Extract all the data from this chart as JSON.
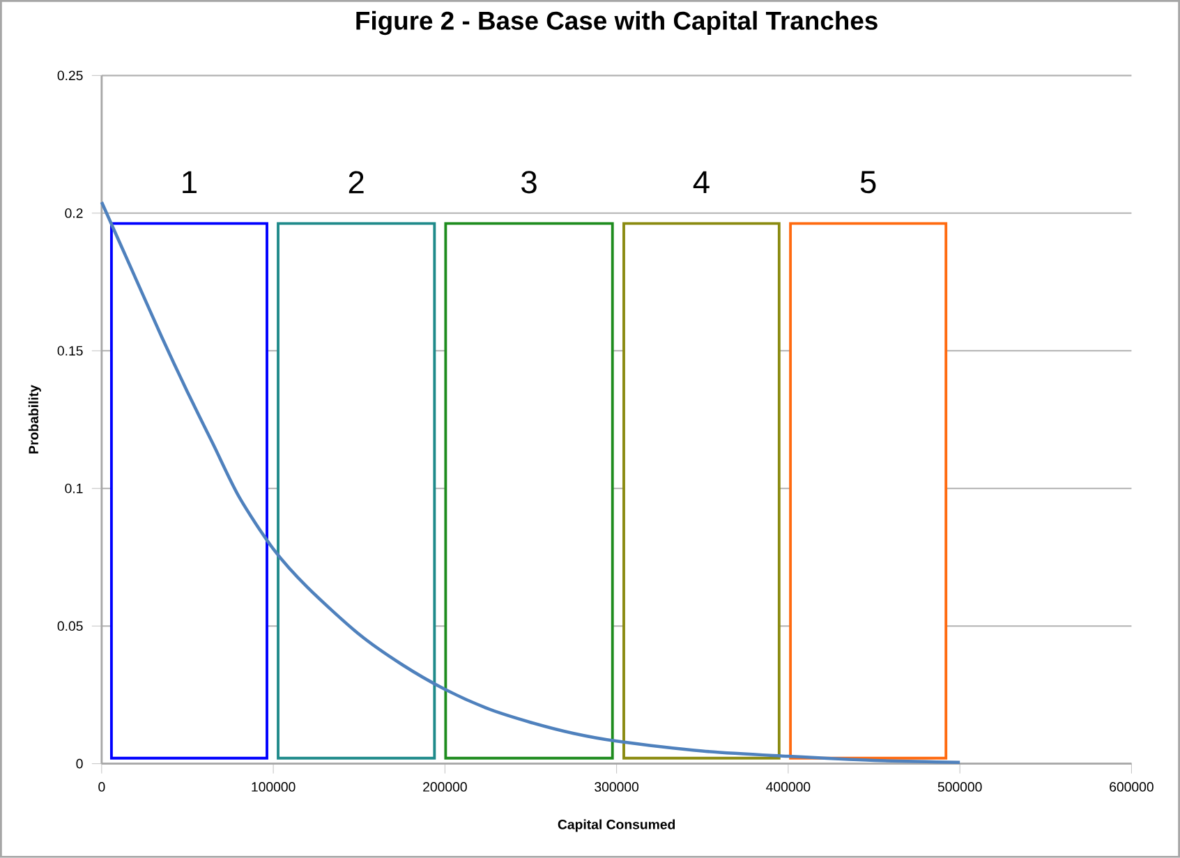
{
  "chart_data": {
    "type": "line",
    "title": "Figure 2 - Base Case with Capital Tranches",
    "xlabel": "Capital Consumed",
    "ylabel": "Probability",
    "xlim": [
      0,
      600000
    ],
    "xticks": [
      0,
      100000,
      200000,
      300000,
      400000,
      500000,
      600000
    ],
    "ylim": [
      0,
      0.25
    ],
    "yticks": [
      0,
      0.05,
      0.1,
      0.15,
      0.2,
      0.25
    ],
    "grid": "y",
    "series": [
      {
        "color": "#4f81bd",
        "x": [
          0,
          10000,
          20000,
          35000,
          50000,
          65000,
          80000,
          100000,
          120000,
          150000,
          175000,
          200000,
          225000,
          250000,
          275000,
          300000,
          350000,
          400000,
          450000,
          500000
        ],
        "values": [
          0.204,
          0.19,
          0.176,
          0.155,
          0.135,
          0.116,
          0.097,
          0.078,
          0.064,
          0.047,
          0.036,
          0.027,
          0.02,
          0.015,
          0.011,
          0.0082,
          0.0046,
          0.0027,
          0.0012,
          0.0005
        ]
      }
    ],
    "bands": [
      {
        "axis": "x",
        "from": 5700,
        "to": 96300,
        "label": "1",
        "color": "#0000ff"
      },
      {
        "axis": "x",
        "from": 102800,
        "to": 193900,
        "label": "2",
        "color": "#1f8a8a"
      },
      {
        "axis": "x",
        "from": 200400,
        "to": 297600,
        "label": "3",
        "color": "#1e8c1e"
      },
      {
        "axis": "x",
        "from": 304200,
        "to": 394700,
        "label": "4",
        "color": "#8a8a10"
      },
      {
        "axis": "x",
        "from": 401300,
        "to": 491900,
        "label": "5",
        "color": "#ff6a10"
      }
    ]
  }
}
